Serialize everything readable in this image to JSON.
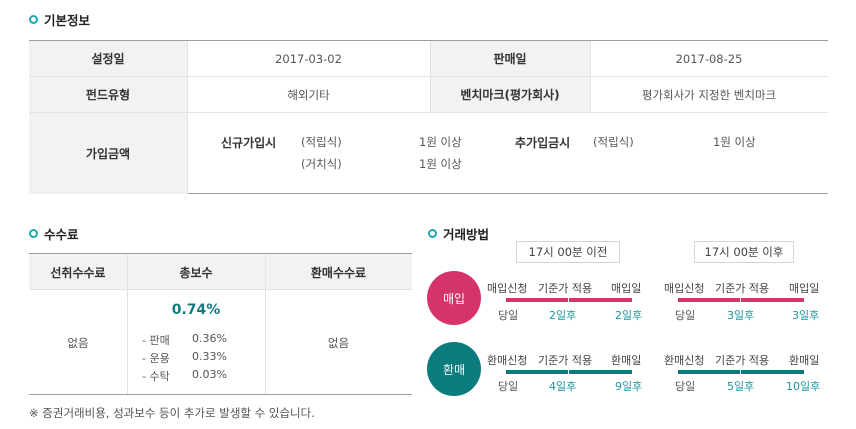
{
  "basic": {
    "title": "기본정보",
    "setup_label": "설정일",
    "setup_value": "2017-03-02",
    "sale_label": "판매일",
    "sale_value": "2017-08-25",
    "type_label": "펀드유형",
    "type_value": "해외기타",
    "bench_label": "벤치마크(평가회사)",
    "bench_value": "평가회사가 지정한 벤치마크",
    "amount_label": "가입금액",
    "new_label": "신규가입시",
    "new_regular": "(적립식)",
    "new_regular_value": "1원 이상",
    "new_lump": "(거치식)",
    "new_lump_value": "1원 이상",
    "add_label": "추가입금시",
    "add_regular": "(적립식)",
    "add_regular_value": "1원 이상"
  },
  "fees": {
    "title": "수수료",
    "front_label": "선취수수료",
    "total_label": "총보수",
    "redeem_label": "환매수수료",
    "front_value": "없음",
    "total_value": "0.74%",
    "items": [
      {
        "name": "- 판매",
        "value": "0.36%"
      },
      {
        "name": "- 운용",
        "value": "0.33%"
      },
      {
        "name": "- 수탁",
        "value": "0.03%"
      }
    ],
    "redeem_value": "없음",
    "note": "※ 증권거래비용, 성과보수 등이 추가로 발생할 수 있습니다."
  },
  "trade": {
    "title": "거래방법",
    "before": "17시 00분 이전",
    "after": "17시 00분 이후",
    "buy": {
      "label": "매입",
      "color": "#d6336c",
      "steps": [
        "매입신청",
        "기준가 적용",
        "매입일"
      ],
      "day0": "당일",
      "before_days": [
        "2일후",
        "2일후"
      ],
      "after_days": [
        "3일후",
        "3일후"
      ]
    },
    "redeem": {
      "label": "환매",
      "color": "#0b7b7e",
      "steps": [
        "환매신청",
        "기준가 적용",
        "환매일"
      ],
      "day0": "당일",
      "before_days": [
        "4일후",
        "9일후"
      ],
      "after_days": [
        "5일후",
        "10일후"
      ]
    }
  }
}
